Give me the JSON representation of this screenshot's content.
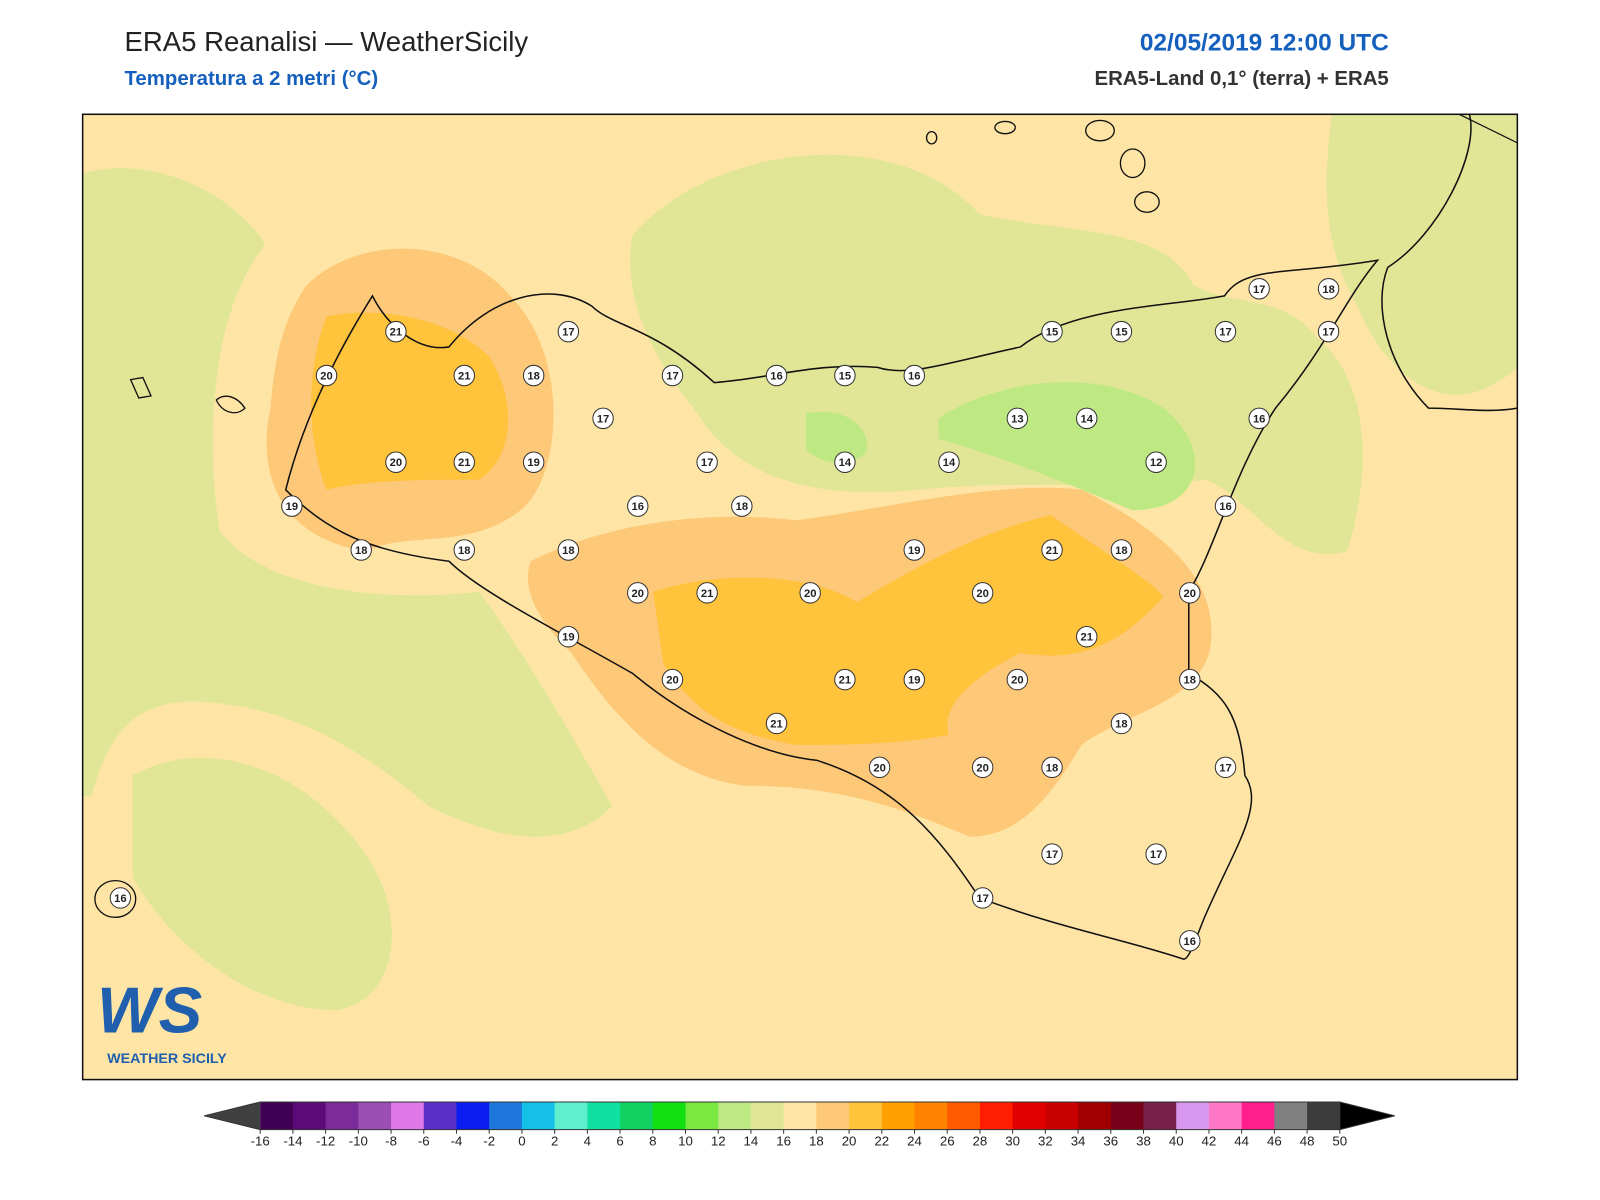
{
  "header": {
    "title": "ERA5 Reanalisi — WeatherSicily",
    "subtitle": "Temperatura a 2 metri (°C)",
    "date": "02/05/2019 12:00 UTC",
    "source": "ERA5-Land 0,1° (terra) + ERA5"
  },
  "stations": [
    21,
    20,
    21,
    18,
    17,
    17,
    17,
    20,
    21,
    19,
    17,
    19,
    18,
    18,
    18,
    16,
    18,
    16,
    15,
    16,
    14,
    14,
    13,
    14,
    12,
    15,
    15,
    17,
    17,
    18,
    17,
    16,
    16,
    19,
    21,
    18,
    20,
    21,
    20,
    20,
    20,
    19,
    21,
    20,
    21,
    19,
    20,
    18,
    21,
    18,
    20,
    20,
    18,
    17,
    17,
    17,
    17,
    16,
    16
  ],
  "colorbar": {
    "ticks": [
      -16,
      -14,
      -12,
      -10,
      -8,
      -6,
      -4,
      -2,
      0,
      2,
      4,
      6,
      8,
      10,
      12,
      14,
      16,
      18,
      20,
      22,
      24,
      26,
      28,
      30,
      32,
      34,
      36,
      38,
      40,
      42,
      44,
      46,
      48,
      50
    ],
    "colors": [
      "#400054",
      "#5c0a7a",
      "#7b2b9a",
      "#9b4fb5",
      "#df77e8",
      "#5a2fc8",
      "#0a1cf0",
      "#1e78dc",
      "#14c0e6",
      "#5fefcf",
      "#10e0a0",
      "#10d060",
      "#10e010",
      "#7ae840",
      "#bde882",
      "#e0e696",
      "#fee5a5",
      "#fec879",
      "#ffc33c",
      "#ffa000",
      "#ff8200",
      "#ff5a00",
      "#ff1e00",
      "#e00000",
      "#c80000",
      "#a00000",
      "#780018",
      "#7a2048",
      "#d898f0",
      "#ff78c8",
      "#ff1e8c",
      "#808080",
      "#3c3c3c"
    ],
    "under_color": "#404040",
    "over_color": "#000000"
  },
  "logo": {
    "mark": "WS",
    "text": "WEATHER SICILY"
  }
}
